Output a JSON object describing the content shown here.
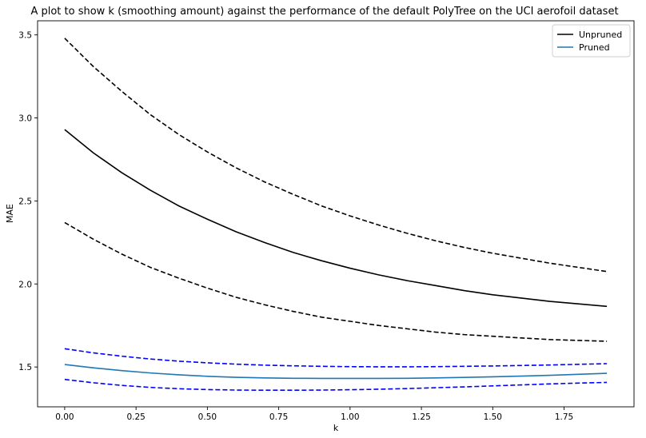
{
  "chart_data": {
    "type": "line",
    "title": "A plot to show k (smoothing amount) against the performance of the default PolyTree on the UCI aerofoil dataset",
    "xlabel": "k",
    "ylabel": "MAE",
    "xlim": [
      -0.095,
      1.995
    ],
    "ylim": [
      1.26,
      3.585
    ],
    "xticks": [
      0.0,
      0.25,
      0.5,
      0.75,
      1.0,
      1.25,
      1.5,
      1.75
    ],
    "xtick_labels": [
      "0.00",
      "0.25",
      "0.50",
      "0.75",
      "1.00",
      "1.25",
      "1.50",
      "1.75"
    ],
    "yticks": [
      1.5,
      2.0,
      2.5,
      3.0,
      3.5
    ],
    "ytick_labels": [
      "1.5",
      "2.0",
      "2.5",
      "3.0",
      "3.5"
    ],
    "grid": false,
    "legend_position": "top-right",
    "x": [
      0.0,
      0.1,
      0.2,
      0.3,
      0.4,
      0.5,
      0.6,
      0.7,
      0.8,
      0.9,
      1.0,
      1.1,
      1.2,
      1.3,
      1.4,
      1.5,
      1.6,
      1.7,
      1.8,
      1.9
    ],
    "series": [
      {
        "name": "Unpruned",
        "color": "#000000",
        "style": "solid",
        "values": [
          2.93,
          2.79,
          2.67,
          2.565,
          2.47,
          2.39,
          2.315,
          2.25,
          2.19,
          2.14,
          2.095,
          2.055,
          2.02,
          1.99,
          1.96,
          1.935,
          1.915,
          1.895,
          1.88,
          1.865
        ]
      },
      {
        "name": "",
        "color": "#000000",
        "style": "dashed",
        "values": [
          3.48,
          3.31,
          3.16,
          3.02,
          2.9,
          2.795,
          2.7,
          2.615,
          2.54,
          2.47,
          2.41,
          2.355,
          2.305,
          2.26,
          2.22,
          2.185,
          2.155,
          2.125,
          2.1,
          2.075
        ]
      },
      {
        "name": "",
        "color": "#000000",
        "style": "dashed",
        "values": [
          2.37,
          2.27,
          2.18,
          2.1,
          2.035,
          1.975,
          1.92,
          1.875,
          1.835,
          1.8,
          1.775,
          1.75,
          1.73,
          1.71,
          1.695,
          1.685,
          1.675,
          1.665,
          1.66,
          1.655
        ]
      },
      {
        "name": "Pruned",
        "color": "#1f77b4",
        "style": "solid",
        "values": [
          1.515,
          1.495,
          1.478,
          1.464,
          1.453,
          1.444,
          1.438,
          1.434,
          1.432,
          1.431,
          1.431,
          1.431,
          1.432,
          1.434,
          1.437,
          1.441,
          1.445,
          1.45,
          1.456,
          1.462
        ]
      },
      {
        "name": "",
        "color": "#0000ff",
        "style": "dashed",
        "values": [
          1.61,
          1.585,
          1.565,
          1.548,
          1.535,
          1.525,
          1.517,
          1.511,
          1.507,
          1.504,
          1.502,
          1.501,
          1.501,
          1.502,
          1.504,
          1.506,
          1.509,
          1.512,
          1.516,
          1.52
        ]
      },
      {
        "name": "",
        "color": "#0000ff",
        "style": "dashed",
        "values": [
          1.425,
          1.405,
          1.389,
          1.377,
          1.369,
          1.364,
          1.361,
          1.36,
          1.36,
          1.361,
          1.363,
          1.366,
          1.37,
          1.375,
          1.38,
          1.386,
          1.392,
          1.398,
          1.403,
          1.407
        ]
      }
    ]
  }
}
